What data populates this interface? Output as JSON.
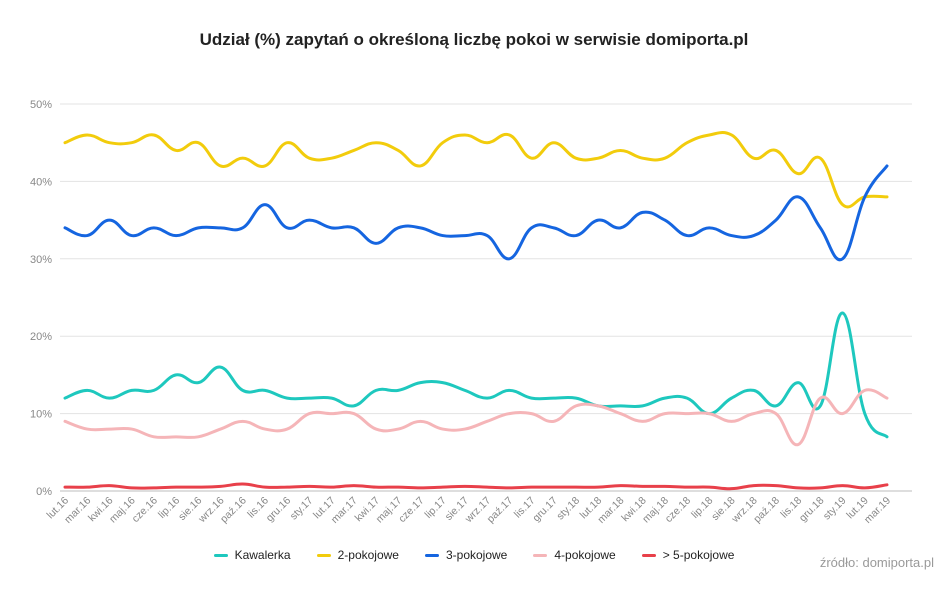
{
  "chart_data": {
    "type": "line",
    "title": "Udział (%) zapytań o określoną liczbę pokoi w serwisie domiporta.pl",
    "source": "źródło: domiporta.pl",
    "categories": [
      "lut.16",
      "mar.16",
      "kwi.16",
      "maj.16",
      "cze.16",
      "lip.16",
      "sie.16",
      "wrz.16",
      "paź.16",
      "lis.16",
      "gru.16",
      "sty.17",
      "lut.17",
      "mar.17",
      "kwi.17",
      "maj.17",
      "cze.17",
      "lip.17",
      "sie.17",
      "wrz.17",
      "paź.17",
      "lis.17",
      "gru.17",
      "sty.18",
      "lut.18",
      "mar.18",
      "kwi.18",
      "maj.18",
      "cze.18",
      "lip.18",
      "sie.18",
      "wrz.18",
      "paź.18",
      "lis.18",
      "gru.18",
      "sty.19",
      "lut.19",
      "mar.19"
    ],
    "y_ticks": [
      "0%",
      "10%",
      "20%",
      "30%",
      "40%",
      "50%"
    ],
    "ylim": [
      0,
      50
    ],
    "grid": true,
    "legend_position": "bottom",
    "series": [
      {
        "name": "Kawalerka",
        "color": "#1ec8be",
        "values": [
          12,
          13,
          12,
          13,
          13,
          15,
          14,
          16,
          13,
          13,
          12,
          12,
          12,
          11,
          13,
          13,
          14,
          14,
          13,
          12,
          13,
          12,
          12,
          12,
          11,
          11,
          11,
          12,
          12,
          10,
          12,
          13,
          11,
          14,
          11,
          23,
          10,
          7
        ]
      },
      {
        "name": "2-pokojowe",
        "color": "#f2cc0c",
        "values": [
          45,
          46,
          45,
          45,
          46,
          44,
          45,
          42,
          43,
          42,
          45,
          43,
          43,
          44,
          45,
          44,
          42,
          45,
          46,
          45,
          46,
          43,
          45,
          43,
          43,
          44,
          43,
          43,
          45,
          46,
          46,
          43,
          44,
          41,
          43,
          37,
          38,
          38
        ]
      },
      {
        "name": "3-pokojowe",
        "color": "#1565e0",
        "values": [
          34,
          33,
          35,
          33,
          34,
          33,
          34,
          34,
          34,
          37,
          34,
          35,
          34,
          34,
          32,
          34,
          34,
          33,
          33,
          33,
          30,
          34,
          34,
          33,
          35,
          34,
          36,
          35,
          33,
          34,
          33,
          33,
          35,
          38,
          34,
          30,
          38,
          42
        ]
      },
      {
        "name": "4-pokojowe",
        "color": "#f5b5b8",
        "values": [
          9,
          8,
          8,
          8,
          7,
          7,
          7,
          8,
          9,
          8,
          8,
          10,
          10,
          10,
          8,
          8,
          9,
          8,
          8,
          9,
          10,
          10,
          9,
          11,
          11,
          10,
          9,
          10,
          10,
          10,
          9,
          10,
          10,
          6,
          12,
          10,
          13,
          12
        ]
      },
      {
        "name": "> 5-pokojowe",
        "color": "#e8404a",
        "values": [
          0.5,
          0.5,
          0.7,
          0.4,
          0.4,
          0.5,
          0.5,
          0.6,
          0.9,
          0.5,
          0.5,
          0.6,
          0.5,
          0.7,
          0.5,
          0.5,
          0.4,
          0.5,
          0.6,
          0.5,
          0.4,
          0.5,
          0.5,
          0.5,
          0.5,
          0.7,
          0.6,
          0.6,
          0.5,
          0.5,
          0.3,
          0.7,
          0.7,
          0.4,
          0.4,
          0.7,
          0.4,
          0.8
        ]
      }
    ]
  }
}
